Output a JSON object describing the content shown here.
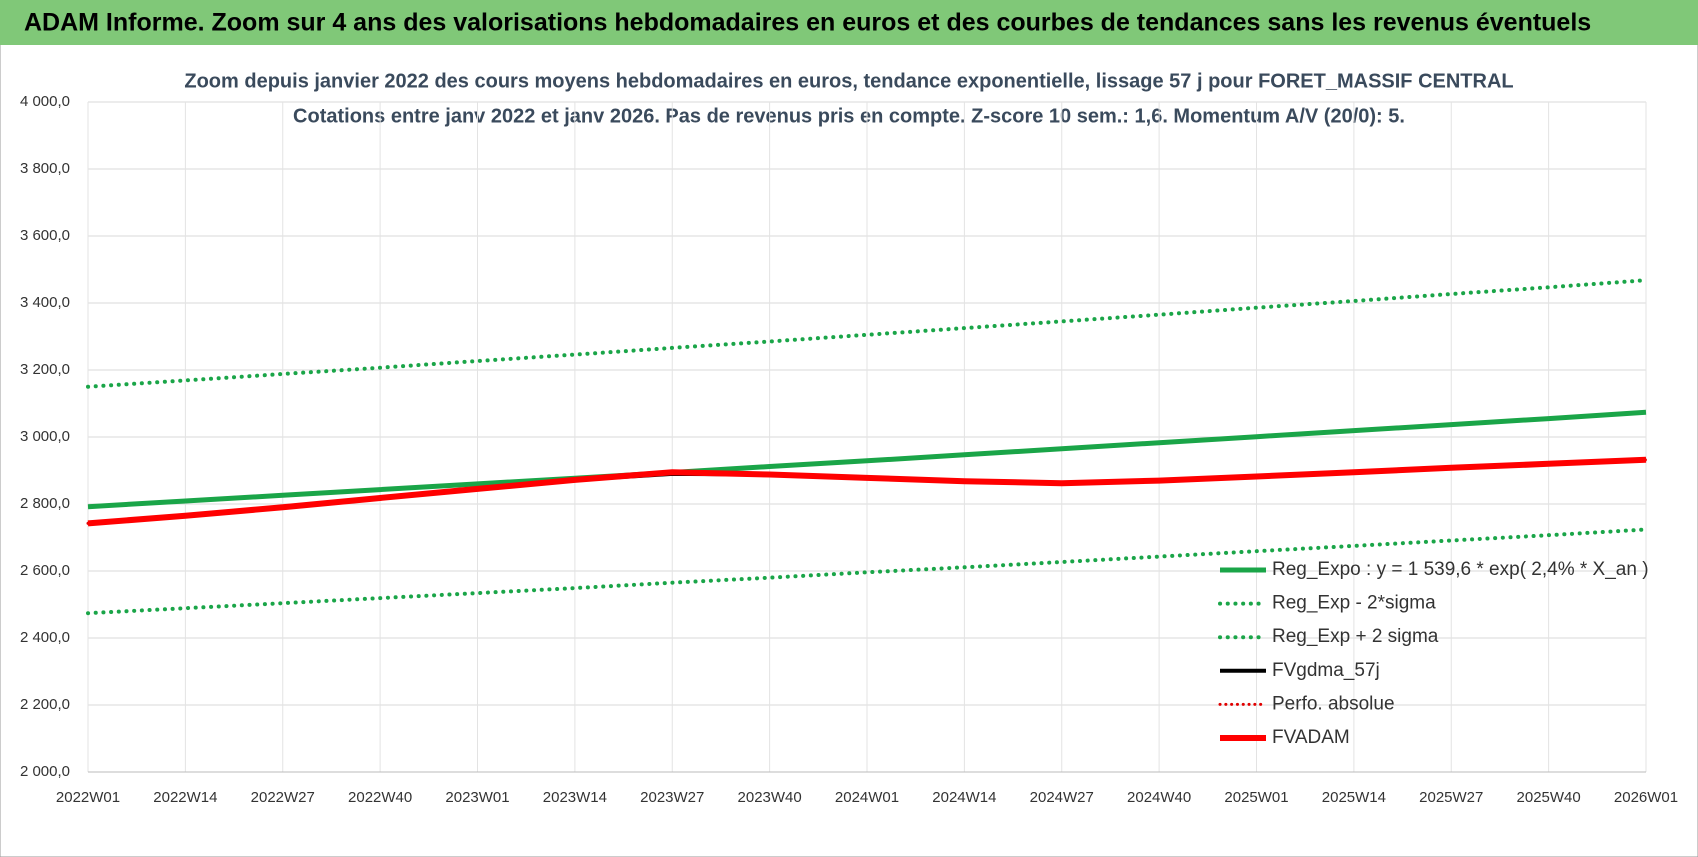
{
  "header": {
    "title": "ADAM Informe. Zoom sur 4 ans des valorisations hebdomadaires en euros et des courbes de tendances sans les revenus éventuels"
  },
  "chart_data": {
    "type": "line",
    "title": "Zoom depuis janvier 2022 des cours moyens hebdomadaires en euros, tendance exponentielle, lissage 57 j pour FORET_MASSIF CENTRAL",
    "subtitle": "Cotations entre janv 2022 et janv 2026. Pas de revenus pris en compte. Z-score 10 sem.: 1,6. Momentum A/V (20/0): 5.",
    "categories": [
      "2022W01",
      "2022W14",
      "2022W27",
      "2022W40",
      "2023W01",
      "2023W14",
      "2023W27",
      "2023W40",
      "2024W01",
      "2024W14",
      "2024W27",
      "2024W40",
      "2025W01",
      "2025W14",
      "2025W27",
      "2025W40",
      "2026W01"
    ],
    "ylim": [
      2000,
      4000
    ],
    "yticks": [
      {
        "value": 2000,
        "label": "2 000,0"
      },
      {
        "value": 2200,
        "label": "2 200,0"
      },
      {
        "value": 2400,
        "label": "2 400,0"
      },
      {
        "value": 2600,
        "label": "2 600,0"
      },
      {
        "value": 2800,
        "label": "2 800,0"
      },
      {
        "value": 3000,
        "label": "3 000,0"
      },
      {
        "value": 3200,
        "label": "3 200,0"
      },
      {
        "value": 3400,
        "label": "3 400,0"
      },
      {
        "value": 3600,
        "label": "3 600,0"
      },
      {
        "value": 3800,
        "label": "3 800,0"
      },
      {
        "value": 4000,
        "label": "4 000,0"
      }
    ],
    "grid": true,
    "legend": "bottom-right",
    "series": [
      {
        "name": "Reg_Expo : y = 1 539,6 * exp( 2,4% *  X_an )",
        "color": "#1aa548",
        "line_style": "solid",
        "line_width": 5,
        "values": [
          2792,
          2809,
          2826,
          2843,
          2860,
          2877,
          2894,
          2912,
          2929,
          2947,
          2965,
          2983,
          3001,
          3019,
          3037,
          3055,
          3074
        ]
      },
      {
        "name": "Reg_Exp - 2*sigma",
        "color": "#1aa548",
        "line_style": "dotted",
        "line_width": 4,
        "values": [
          2474,
          2489,
          2504,
          2519,
          2534,
          2549,
          2565,
          2580,
          2596,
          2611,
          2627,
          2643,
          2659,
          2675,
          2691,
          2707,
          2724
        ]
      },
      {
        "name": "Reg_Exp + 2 sigma",
        "color": "#1aa548",
        "line_style": "dotted",
        "line_width": 4,
        "values": [
          3150,
          3169,
          3188,
          3207,
          3227,
          3246,
          3266,
          3285,
          3305,
          3325,
          3345,
          3365,
          3386,
          3406,
          3427,
          3447,
          3468
        ]
      },
      {
        "name": "FVgdma_57j",
        "color": "#000000",
        "line_style": "solid",
        "line_width": 4,
        "values": [
          2742,
          2765,
          2790,
          2818,
          2845,
          2872,
          2890,
          2888,
          2878,
          2868,
          2862,
          2870,
          2882,
          2895,
          2908,
          2920,
          2932
        ]
      },
      {
        "name": "Perfo. absolue",
        "color": "#e00000",
        "line_style": "dotted",
        "line_width": 3,
        "values": [
          2742,
          2765,
          2790,
          2818,
          2845,
          2872,
          2895,
          2888,
          2878,
          2868,
          2862,
          2870,
          2882,
          2895,
          2908,
          2920,
          2932
        ]
      },
      {
        "name": "FVADAM",
        "color": "#ff0000",
        "line_style": "solid",
        "line_width": 6,
        "values": [
          2742,
          2765,
          2790,
          2818,
          2845,
          2872,
          2895,
          2888,
          2878,
          2868,
          2862,
          2870,
          2882,
          2895,
          2908,
          2920,
          2932
        ]
      }
    ]
  }
}
